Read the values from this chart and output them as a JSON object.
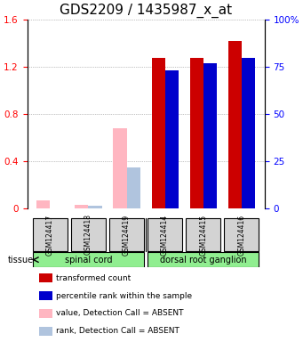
{
  "title": "GDS2209 / 1435987_x_at",
  "samples": [
    "GSM124417",
    "GSM124418",
    "GSM124419",
    "GSM124414",
    "GSM124415",
    "GSM124416"
  ],
  "absent_value": [
    0.07,
    0.03,
    0.68,
    null,
    null,
    null
  ],
  "absent_rank": [
    null,
    0.02,
    0.35,
    null,
    null,
    null
  ],
  "present_value": [
    null,
    null,
    null,
    1.27,
    1.27,
    1.42
  ],
  "present_rank_blue": [
    null,
    null,
    null,
    1.17,
    1.225,
    1.275
  ],
  "ylim": [
    0,
    1.6
  ],
  "yticks": [
    0,
    0.4,
    0.8,
    1.2,
    1.6
  ],
  "right_yticks": [
    0,
    25,
    50,
    75,
    100
  ],
  "right_yticklabels": [
    "0",
    "25",
    "50",
    "75",
    "100%"
  ],
  "bar_width": 0.35,
  "absent_color": "#FFB6C1",
  "absent_rank_color": "#B0C4DE",
  "present_color": "#CC0000",
  "present_rank_color": "#0000CC",
  "tissue_color": "#90EE90",
  "sample_bg_color": "#D3D3D3",
  "grid_color": "#888888",
  "title_fontsize": 11,
  "tick_fontsize": 7.5,
  "label_fontsize": 8
}
